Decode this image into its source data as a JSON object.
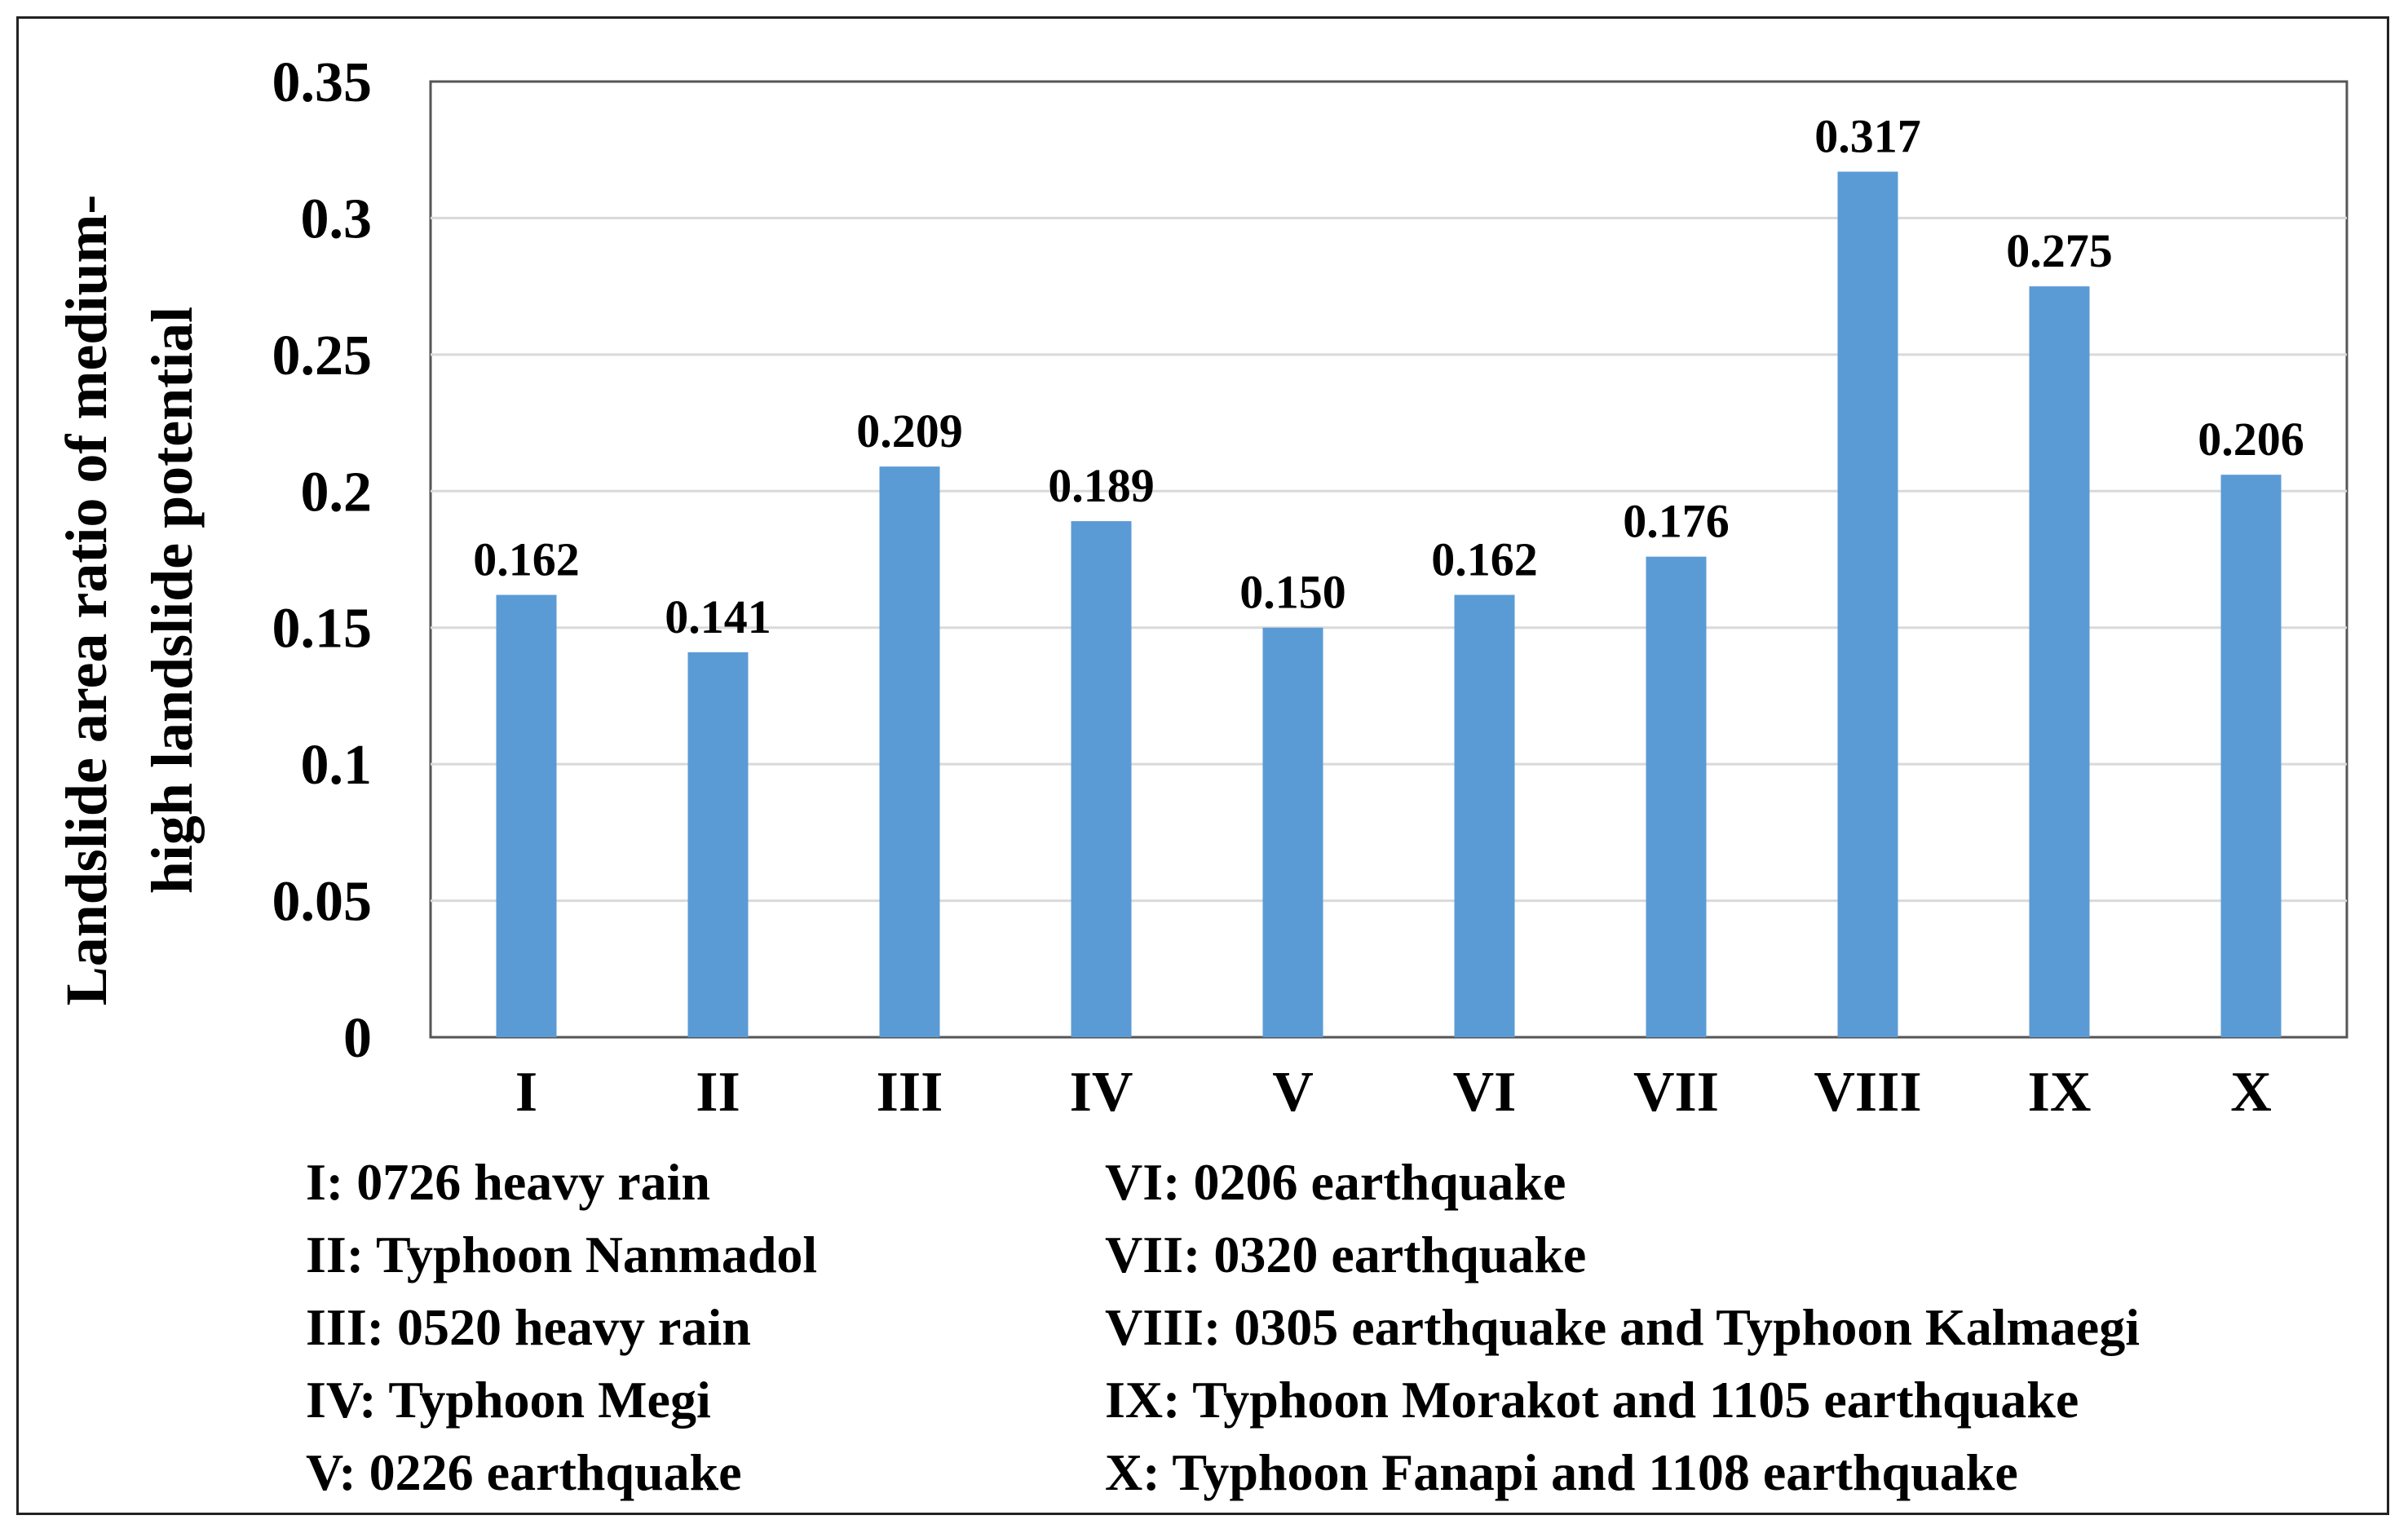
{
  "chart_data": {
    "type": "bar",
    "ylabel_lines": [
      "Landslide area ratio of medium-",
      "high landslide potential"
    ],
    "xlabel": "",
    "categories": [
      "I",
      "II",
      "III",
      "IV",
      "V",
      "VI",
      "VII",
      "VIII",
      "IX",
      "X"
    ],
    "values": [
      0.162,
      0.141,
      0.209,
      0.189,
      0.15,
      0.162,
      0.176,
      0.317,
      0.275,
      0.206
    ],
    "data_labels": [
      "0.162",
      "0.141",
      "0.209",
      "0.189",
      "0.150",
      "0.162",
      "0.176",
      "0.317",
      "0.275",
      "0.206"
    ],
    "yticks": [
      "0",
      "0.05",
      "0.1",
      "0.15",
      "0.2",
      "0.25",
      "0.3",
      "0.35"
    ],
    "ylim": [
      0,
      0.35
    ],
    "grid": true,
    "bar_color": "#5B9BD5",
    "legend_left": [
      "I: 0726 heavy rain",
      "II: Typhoon Nanmadol",
      "III: 0520 heavy rain",
      "IV: Typhoon Megi",
      "V: 0226 earthquake"
    ],
    "legend_right": [
      "VI: 0206 earthquake",
      "VII: 0320 earthquake",
      "VIII: 0305 earthquake and Typhoon Kalmaegi",
      "IX: Typhoon Morakot and 1105 earthquake",
      "X: Typhoon Fanapi and 1108 earthquake"
    ]
  }
}
